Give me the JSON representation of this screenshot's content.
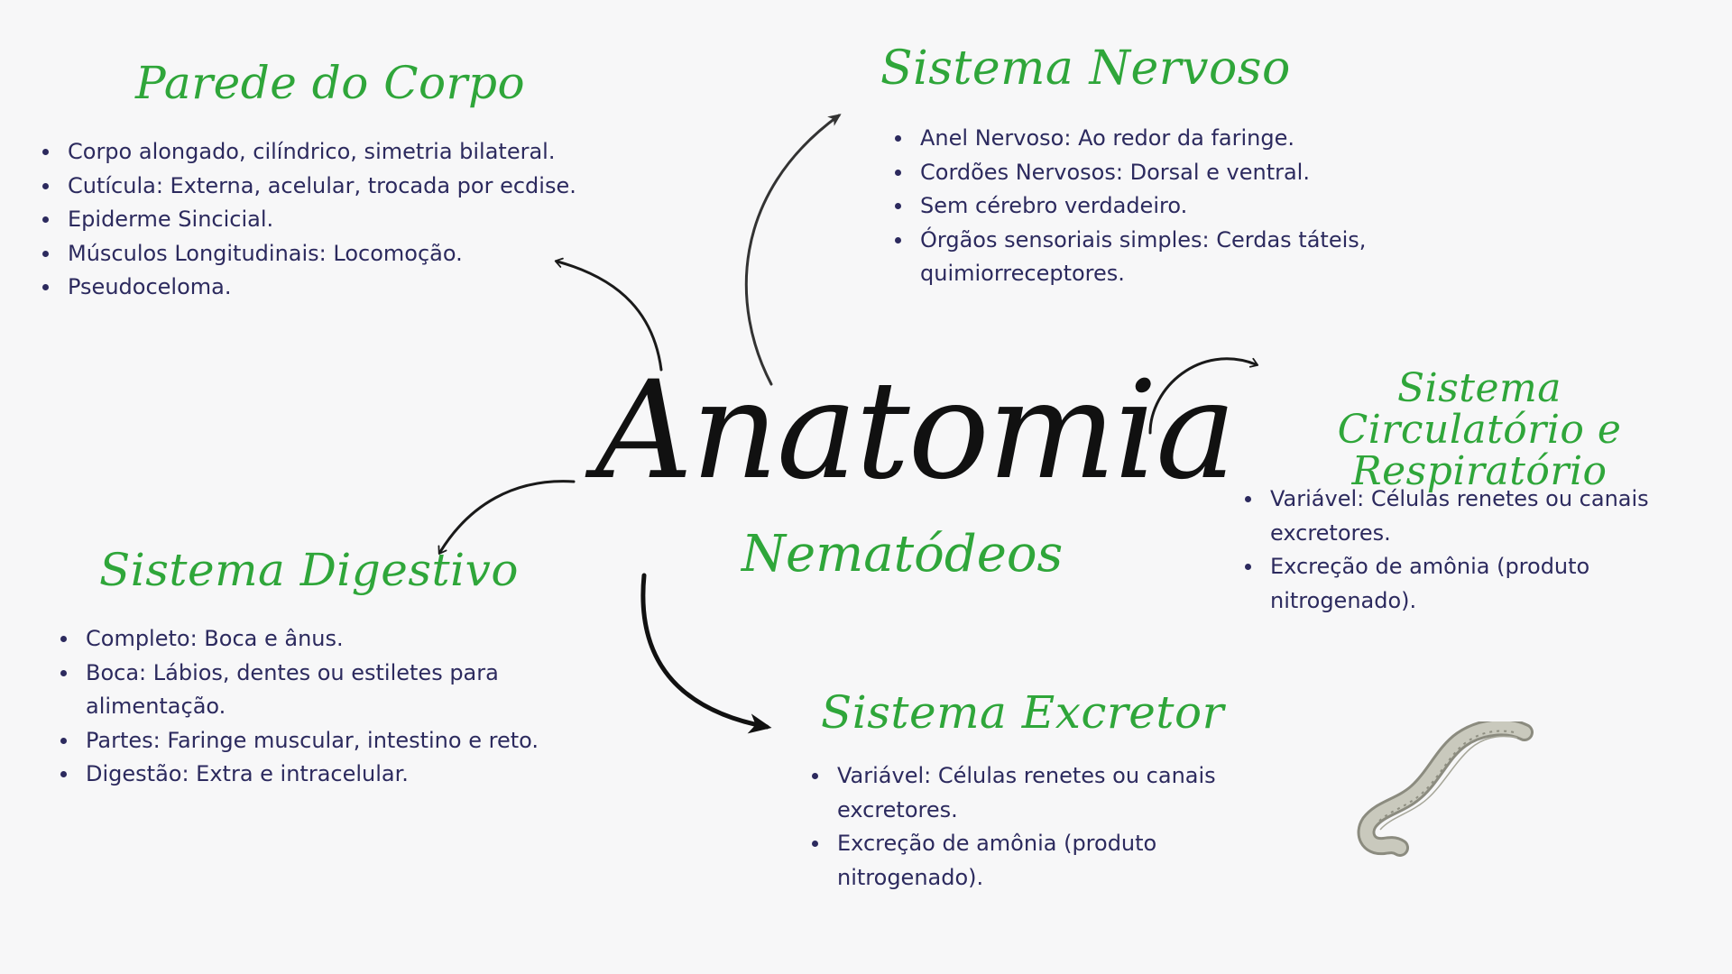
{
  "title": "Anatomia",
  "subtitle": "Nematódeos",
  "colors": {
    "heading": "#2fa63a",
    "text": "#2c2a5e",
    "title": "#111111",
    "background": "#f7f7f8"
  },
  "sections": {
    "parede": {
      "heading": "Parede do Corpo",
      "items": [
        "Corpo alongado, cilíndrico, simetria bilateral.",
        "Cutícula: Externa, acelular, trocada por ecdise.",
        "Epiderme Sincicial.",
        "Músculos Longitudinais: Locomoção.",
        "Pseudoceloma."
      ]
    },
    "nervoso": {
      "heading": "Sistema Nervoso",
      "items": [
        "Anel Nervoso: Ao redor da faringe.",
        "Cordões Nervosos: Dorsal e ventral.",
        "Sem cérebro verdadeiro.",
        "Órgãos sensoriais simples: Cerdas táteis, quimiorreceptores."
      ]
    },
    "circulatorio": {
      "heading": "Sistema Circulatório e Respiratório",
      "items": [
        "Variável: Células renetes ou canais excretores.",
        "Excreção de amônia (produto nitrogenado)."
      ]
    },
    "digestivo": {
      "heading": "Sistema Digestivo",
      "items": [
        "Completo: Boca e ânus.",
        "Boca: Lábios, dentes ou estiletes para alimentação.",
        "Partes: Faringe muscular, intestino e reto.",
        "Digestão: Extra e intracelular."
      ]
    },
    "excretor": {
      "heading": "Sistema Excretor",
      "items": [
        "Variável: Células renetes ou canais excretores.",
        "Excreção de amônia (produto nitrogenado)."
      ]
    }
  },
  "illustration": "nematode-worm-icon",
  "arrow_icons": [
    "arrow-to-parede-icon",
    "arrow-to-nervoso-icon",
    "arrow-to-circulatorio-icon",
    "arrow-to-digestivo-icon",
    "arrow-to-excretor-icon"
  ]
}
